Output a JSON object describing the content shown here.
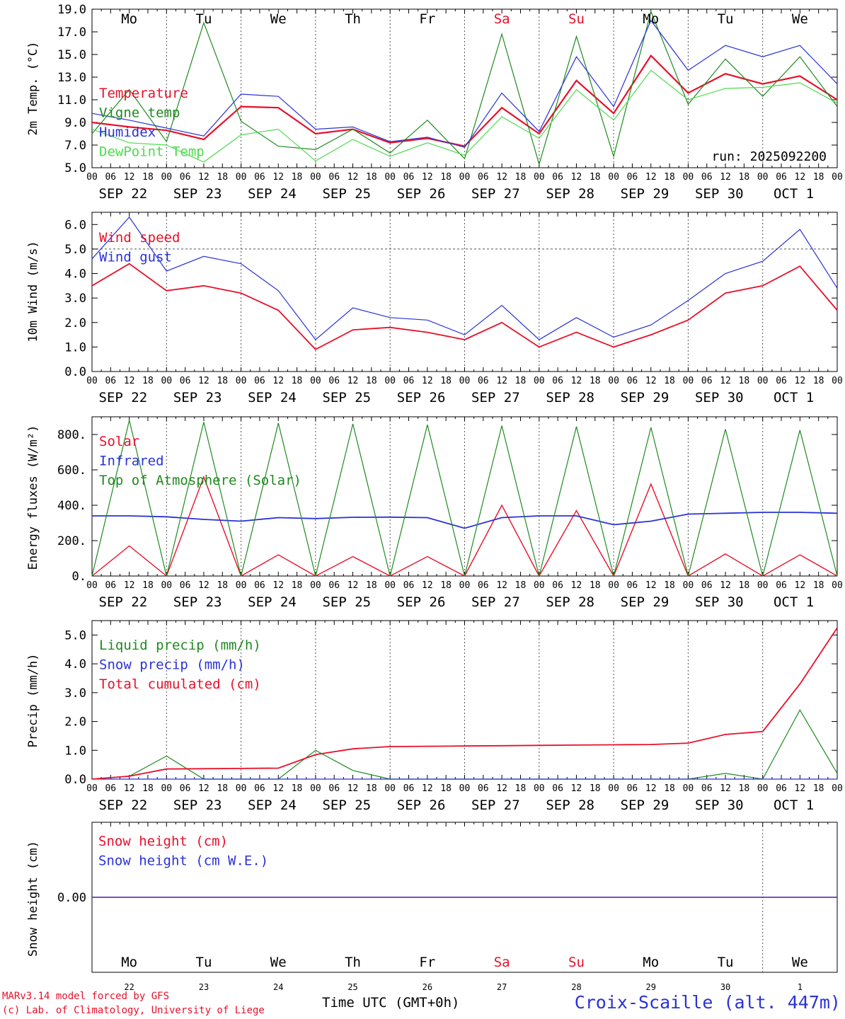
{
  "chart_data": [
    {
      "type": "line",
      "ylabel": "2m Temp. (°C)",
      "ylim": [
        5.0,
        19.0
      ],
      "ytick_labels": [
        "5.0",
        "7.0",
        "9.0",
        "11.0",
        "13.0",
        "15.0",
        "17.0",
        "19.0"
      ],
      "annotation": "run: 2025092200",
      "day_labels": [
        {
          "label": "Mo",
          "color": "#000000"
        },
        {
          "label": "Tu",
          "color": "#000000"
        },
        {
          "label": "We",
          "color": "#000000"
        },
        {
          "label": "Th",
          "color": "#000000"
        },
        {
          "label": "Fr",
          "color": "#000000"
        },
        {
          "label": "Sa",
          "color": "#e8102a"
        },
        {
          "label": "Su",
          "color": "#e8102a"
        },
        {
          "label": "Mo",
          "color": "#000000"
        },
        {
          "label": "Tu",
          "color": "#000000"
        },
        {
          "label": "We",
          "color": "#000000"
        }
      ],
      "x": [
        0,
        12,
        24,
        36,
        48,
        60,
        72,
        84,
        96,
        108,
        120,
        132,
        144,
        156,
        168,
        180,
        192,
        204,
        216,
        228,
        240
      ],
      "series": [
        {
          "name": "Temperature",
          "color": "#e8102a",
          "width": 2.2,
          "values": [
            9.0,
            8.6,
            8.3,
            7.5,
            10.4,
            10.3,
            8.0,
            8.4,
            7.2,
            7.6,
            6.9,
            10.3,
            8.0,
            12.7,
            9.8,
            14.9,
            11.6,
            13.3,
            12.4,
            13.1,
            11.0
          ]
        },
        {
          "name": "Vigne temp",
          "color": "#1f8a1f",
          "width": 1.2,
          "values": [
            8.0,
            11.9,
            7.3,
            17.8,
            9.1,
            6.9,
            6.6,
            8.4,
            6.3,
            9.2,
            5.8,
            16.8,
            5.3,
            16.6,
            6.0,
            18.8,
            10.6,
            14.6,
            11.3,
            14.8,
            10.4
          ]
        },
        {
          "name": "Humidex",
          "color": "#2a32d8",
          "width": 1.2,
          "values": [
            9.8,
            9.2,
            8.5,
            7.8,
            11.5,
            11.3,
            8.4,
            8.6,
            7.3,
            7.7,
            6.8,
            11.6,
            8.2,
            14.8,
            10.4,
            18.0,
            13.6,
            15.8,
            14.8,
            15.8,
            12.4
          ]
        },
        {
          "name": "DewPoint Temp",
          "color": "#4ddb4d",
          "width": 1.2,
          "values": [
            8.4,
            7.2,
            7.0,
            5.5,
            7.9,
            8.4,
            5.6,
            7.5,
            6.0,
            7.2,
            6.1,
            9.5,
            7.6,
            11.9,
            9.2,
            13.6,
            11.0,
            12.0,
            12.1,
            12.5,
            10.7
          ]
        }
      ]
    },
    {
      "type": "line",
      "ylabel": "10m Wind (m/s)",
      "ylim": [
        0.0,
        6.5
      ],
      "ytick_labels": [
        "0.0",
        "1.0",
        "2.0",
        "3.0",
        "4.0",
        "5.0",
        "6.0"
      ],
      "reference_line": 5.0,
      "x": [
        0,
        12,
        24,
        36,
        48,
        60,
        72,
        84,
        96,
        108,
        120,
        132,
        144,
        156,
        168,
        180,
        192,
        204,
        216,
        228,
        240
      ],
      "series": [
        {
          "name": "Wind speed",
          "color": "#e8102a",
          "width": 1.8,
          "values": [
            3.5,
            4.4,
            3.3,
            3.5,
            3.2,
            2.5,
            0.9,
            1.7,
            1.8,
            1.6,
            1.3,
            2.0,
            1.0,
            1.6,
            1.0,
            1.5,
            2.1,
            3.2,
            3.5,
            4.3,
            2.5
          ]
        },
        {
          "name": "Wind gust",
          "color": "#2a32d8",
          "width": 1.2,
          "values": [
            4.6,
            6.3,
            4.1,
            4.7,
            4.4,
            3.3,
            1.3,
            2.6,
            2.2,
            2.1,
            1.5,
            2.7,
            1.3,
            2.2,
            1.4,
            1.9,
            2.9,
            4.0,
            4.5,
            5.8,
            3.4
          ]
        }
      ]
    },
    {
      "type": "line",
      "ylabel": "Energy fluxes (W/m²)",
      "ylim": [
        0,
        900
      ],
      "ytick_labels": [
        "0.",
        "200.",
        "400.",
        "600.",
        "800."
      ],
      "x": [
        0,
        12,
        24,
        36,
        48,
        60,
        72,
        84,
        96,
        108,
        120,
        132,
        144,
        156,
        168,
        180,
        192,
        204,
        216,
        228,
        240
      ],
      "series": [
        {
          "name": "Solar",
          "color": "#e8102a",
          "width": 1.4,
          "values": [
            0,
            170,
            0,
            560,
            0,
            120,
            0,
            110,
            0,
            110,
            0,
            400,
            0,
            370,
            0,
            520,
            0,
            125,
            0,
            120,
            0
          ]
        },
        {
          "name": "Infrared",
          "color": "#2a32d8",
          "width": 1.8,
          "values": [
            340,
            340,
            335,
            320,
            310,
            330,
            325,
            332,
            333,
            330,
            270,
            330,
            340,
            340,
            290,
            310,
            350,
            355,
            360,
            360,
            355
          ]
        },
        {
          "name": "Top of Atmosphere (Solar)",
          "color": "#1f8a1f",
          "width": 1.2,
          "values": [
            0,
            880,
            0,
            870,
            0,
            865,
            0,
            860,
            0,
            855,
            0,
            850,
            0,
            845,
            0,
            840,
            0,
            830,
            0,
            825,
            0
          ]
        }
      ]
    },
    {
      "type": "line",
      "ylabel": "Precip (mm/h)",
      "ylim": [
        0.0,
        5.5
      ],
      "ytick_labels": [
        "0.0",
        "1.0",
        "2.0",
        "3.0",
        "4.0",
        "5.0"
      ],
      "x": [
        0,
        12,
        24,
        36,
        48,
        60,
        72,
        84,
        96,
        108,
        120,
        132,
        144,
        156,
        168,
        180,
        192,
        204,
        216,
        228,
        240
      ],
      "series": [
        {
          "name": "Liquid precip (mm/h)",
          "color": "#1f8a1f",
          "width": 1.2,
          "values": [
            0.0,
            0.1,
            0.8,
            0.0,
            0.0,
            0.0,
            1.0,
            0.3,
            0.0,
            0.0,
            0.0,
            0.0,
            0.0,
            0.0,
            0.0,
            0.0,
            0.0,
            0.2,
            0.0,
            2.4,
            0.2
          ]
        },
        {
          "name": "Snow precip (mm/h)",
          "color": "#2a32d8",
          "width": 1.2,
          "values": [
            0,
            0,
            0,
            0,
            0,
            0,
            0,
            0,
            0,
            0,
            0,
            0,
            0,
            0,
            0,
            0,
            0,
            0,
            0,
            0,
            0
          ]
        },
        {
          "name": "Total cumulated (cm)",
          "color": "#e8102a",
          "width": 1.8,
          "values": [
            0.0,
            0.1,
            0.35,
            0.36,
            0.37,
            0.38,
            0.85,
            1.05,
            1.13,
            1.14,
            1.15,
            1.16,
            1.17,
            1.18,
            1.19,
            1.2,
            1.25,
            1.55,
            1.65,
            3.3,
            5.25
          ]
        }
      ]
    },
    {
      "type": "line",
      "ylabel": "Snow height (cm)",
      "ylim": [
        -1,
        1
      ],
      "ytick_labels": [
        "0.00"
      ],
      "x": [
        0,
        240
      ],
      "series": [
        {
          "name": "Snow height (cm)",
          "color": "#e8102a",
          "width": 1.4,
          "values": [
            0,
            0
          ]
        },
        {
          "name": "Snow height (cm W.E.)",
          "color": "#2a32d8",
          "width": 1.2,
          "values": [
            0,
            0
          ]
        }
      ],
      "day_labels": [
        {
          "label": "Mo",
          "color": "#000000"
        },
        {
          "label": "Tu",
          "color": "#000000"
        },
        {
          "label": "We",
          "color": "#000000"
        },
        {
          "label": "Th",
          "color": "#000000"
        },
        {
          "label": "Fr",
          "color": "#000000"
        },
        {
          "label": "Sa",
          "color": "#e8102a"
        },
        {
          "label": "Su",
          "color": "#e8102a"
        },
        {
          "label": "Mo",
          "color": "#000000"
        },
        {
          "label": "Tu",
          "color": "#000000"
        },
        {
          "label": "We",
          "color": "#000000"
        }
      ],
      "day_numbers": [
        "22",
        "23",
        "24",
        "25",
        "26",
        "27",
        "28",
        "29",
        "30",
        "1"
      ]
    }
  ],
  "x_hour_ticks": [
    "00",
    "06",
    "12",
    "18"
  ],
  "x_end_tick": "00",
  "date_labels": [
    "SEP 22",
    "SEP 23",
    "SEP 24",
    "SEP 25",
    "SEP 26",
    "SEP 27",
    "SEP 28",
    "SEP 29",
    "SEP 30",
    "OCT  1"
  ],
  "xlabel": "Time UTC (GMT+0h)",
  "credit_line1": "MARv3.14 model forced by GFS",
  "credit_line2": "(c) Lab. of Climatology, University of Liege",
  "station": "Croix-Scaille (alt. 447m)"
}
